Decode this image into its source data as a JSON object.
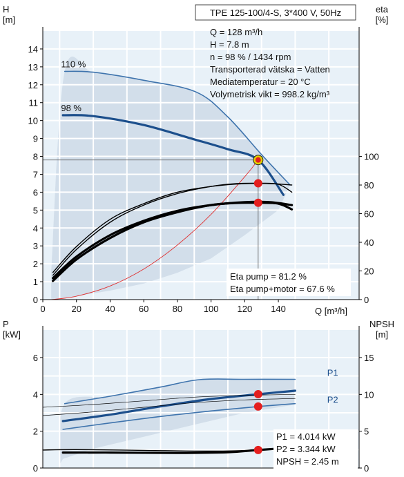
{
  "colors": {
    "envelope": "#d2deea",
    "envelope_light": "#e8f1f8",
    "curve_blue": "#1c4f8c",
    "curve_blue_light": "#3f74ad",
    "curve_black": "#000000",
    "system_curve": "#e03030",
    "grid": "#ffffff",
    "operating_point": "#e41e1e",
    "operating_point_ring": "#e4d000"
  },
  "header": {
    "title": "TPE 125-100/4-S, 3*400 V, 50Hz"
  },
  "info": {
    "lines": [
      "Q = 128 m³/h",
      "H = 7.8 m",
      "n = 98 % / 1434 rpm",
      "Transporterad vätska = Vatten",
      "Mediatemperatur = 20 °C",
      "Volymetrisk vikt = 998.2 kg/m³"
    ],
    "eta_lines": [
      "Eta pump = 81.2 %",
      "Eta pump+motor = 67.6 %"
    ],
    "power_lines": [
      "P1 = 4.014 kW",
      "P2 = 3.344 kW",
      "NPSH = 2.45 m"
    ]
  },
  "chart_data": [
    {
      "type": "line",
      "name": "head-efficiency",
      "ylabel": "H\n[m]",
      "ylabel_right": "eta\n[%]",
      "xlabel": "Q [m³/h]",
      "xlim": [
        0,
        188
      ],
      "ylim": [
        0,
        15
      ],
      "ylim_right": [
        0,
        187.5
      ],
      "x_ticks": [
        0,
        20,
        40,
        60,
        80,
        100,
        120,
        140
      ],
      "y_ticks": [
        0,
        1,
        2,
        3,
        4,
        5,
        6,
        7,
        8,
        9,
        10,
        11,
        12,
        13,
        14
      ],
      "y_right_ticks": [
        0,
        20,
        40,
        60,
        80,
        100
      ],
      "grid": true,
      "curve_labels": [
        {
          "text": "110 %",
          "x": 10,
          "y": 12.75
        },
        {
          "text": "98 %",
          "x": 10,
          "y": 10.3
        }
      ],
      "series": [
        {
          "key": "h110",
          "axis": "left",
          "style": "blue_thin",
          "x": [
            13,
            30,
            60,
            91,
            110,
            130,
            147
          ],
          "y": [
            12.75,
            12.7,
            12.25,
            11.6,
            10.2,
            8.1,
            6.4
          ]
        },
        {
          "key": "h98",
          "axis": "left",
          "style": "blue_thick",
          "x": [
            12,
            30,
            60,
            90,
            110,
            128,
            143
          ],
          "y": [
            10.3,
            10.25,
            9.75,
            8.95,
            8.4,
            7.8,
            5.85
          ]
        },
        {
          "key": "h_system",
          "axis": "left",
          "style": "red_thin",
          "x": [
            5,
            20,
            40,
            60,
            80,
            100,
            120,
            128
          ],
          "y": [
            0,
            0.19,
            0.76,
            1.71,
            3.05,
            4.76,
            6.86,
            7.8
          ]
        },
        {
          "key": "eta_pump_110",
          "axis": "right",
          "style": "black_thin",
          "x": [
            6,
            20,
            40,
            60,
            80,
            100,
            120,
            135,
            148
          ],
          "y": [
            19,
            37,
            56,
            67,
            75,
            79,
            81,
            81,
            80
          ]
        },
        {
          "key": "eta_pump_98",
          "axis": "right",
          "style": "black_thin",
          "x": [
            6,
            20,
            40,
            60,
            80,
            100,
            115,
            128,
            140,
            148
          ],
          "y": [
            17,
            35,
            54,
            66,
            74,
            79,
            81,
            81.2,
            80.5,
            75
          ]
        },
        {
          "key": "eta_total_110",
          "axis": "right",
          "style": "black_thick",
          "x": [
            6,
            20,
            40,
            60,
            80,
            100,
            120,
            135,
            148
          ],
          "y": [
            15,
            30,
            45,
            55,
            62,
            66,
            68,
            68,
            66
          ]
        },
        {
          "key": "eta_total_98",
          "axis": "right",
          "style": "black_thick",
          "x": [
            6,
            20,
            40,
            60,
            80,
            100,
            115,
            128,
            140,
            148
          ],
          "y": [
            13,
            28,
            43,
            54,
            61,
            66,
            67.5,
            67.6,
            67,
            63
          ]
        }
      ],
      "envelope": {
        "upper_x": [
          5,
          13,
          30,
          60,
          91,
          110,
          130,
          147
        ],
        "upper_y": [
          1.6,
          12.75,
          12.7,
          12.25,
          11.6,
          10.2,
          8.1,
          6.4
        ],
        "lower_x": [
          140,
          120,
          100,
          80,
          60,
          40,
          20,
          8,
          5
        ],
        "lower_y": [
          5.0,
          3.6,
          2.3,
          1.5,
          0.9,
          0.5,
          0.2,
          0.05,
          0.05
        ]
      },
      "operating_points": [
        {
          "x": 128,
          "y": 7.8,
          "axis": "left",
          "ring": true
        },
        {
          "x": 128,
          "y": 81.2,
          "axis": "right"
        },
        {
          "x": 128,
          "y": 67.6,
          "axis": "right"
        }
      ]
    },
    {
      "type": "line",
      "name": "power-npsh",
      "ylabel": "P\n[kW]",
      "ylabel_right": "NPSH\n[m]",
      "xlim": [
        0,
        188
      ],
      "ylim": [
        0,
        7.5
      ],
      "ylim_right": [
        0,
        18.75
      ],
      "y_ticks": [
        0,
        2,
        4,
        6
      ],
      "y_right_ticks": [
        0,
        5,
        10,
        15
      ],
      "grid": true,
      "series_labels": [
        {
          "text": "P1",
          "x": 169,
          "y": 5.0
        },
        {
          "text": "P2",
          "x": 169,
          "y": 3.55
        }
      ],
      "series": [
        {
          "key": "p1_110",
          "axis": "left",
          "style": "blue_thin",
          "x": [
            13,
            40,
            70,
            93,
            120,
            150
          ],
          "y": [
            3.5,
            3.9,
            4.4,
            4.8,
            4.82,
            4.82
          ]
        },
        {
          "key": "p1_98",
          "axis": "left",
          "style": "blue_thick",
          "x": [
            12,
            40,
            70,
            100,
            128,
            150
          ],
          "y": [
            2.55,
            2.9,
            3.35,
            3.75,
            4.01,
            4.2
          ]
        },
        {
          "key": "p2_98",
          "axis": "left",
          "style": "blue_thin",
          "x": [
            12,
            40,
            70,
            100,
            128,
            150
          ],
          "y": [
            2.1,
            2.45,
            2.8,
            3.1,
            3.34,
            3.5
          ]
        },
        {
          "key": "p_low_1",
          "axis": "left",
          "style": "black_hair",
          "x": [
            0,
            30,
            60,
            90,
            120,
            150
          ],
          "y": [
            3.3,
            3.45,
            3.65,
            3.85,
            3.95,
            4.0
          ]
        },
        {
          "key": "p_low_2",
          "axis": "left",
          "style": "black_hair",
          "x": [
            0,
            30,
            60,
            90,
            120,
            150
          ],
          "y": [
            2.85,
            3.05,
            3.3,
            3.55,
            3.7,
            3.78
          ]
        },
        {
          "key": "npsh_110",
          "axis": "right",
          "style": "black_thin",
          "x": [
            0,
            20,
            60,
            100,
            128,
            150
          ],
          "y": [
            2.45,
            2.5,
            2.4,
            2.3,
            2.45,
            2.85
          ]
        },
        {
          "key": "npsh_98",
          "axis": "right",
          "style": "black_thick",
          "x": [
            12,
            40,
            80,
            110,
            128,
            150
          ],
          "y": [
            2.1,
            2.1,
            2.05,
            2.15,
            2.45,
            2.8
          ]
        }
      ],
      "envelope": {
        "upper_x": [
          10,
          13,
          40,
          70,
          93,
          120,
          150
        ],
        "upper_y": [
          0.2,
          3.5,
          3.9,
          4.4,
          4.8,
          4.82,
          4.82
        ],
        "lower_x": [
          150,
          120,
          90,
          60,
          30,
          12,
          10
        ],
        "lower_y": [
          3.45,
          3.0,
          2.35,
          1.7,
          1.05,
          0.5,
          0.2
        ]
      },
      "operating_points": [
        {
          "x": 128,
          "y": 4.014,
          "axis": "left"
        },
        {
          "x": 128,
          "y": 3.344,
          "axis": "left"
        },
        {
          "x": 128,
          "y": 2.45,
          "axis": "right"
        }
      ]
    }
  ]
}
